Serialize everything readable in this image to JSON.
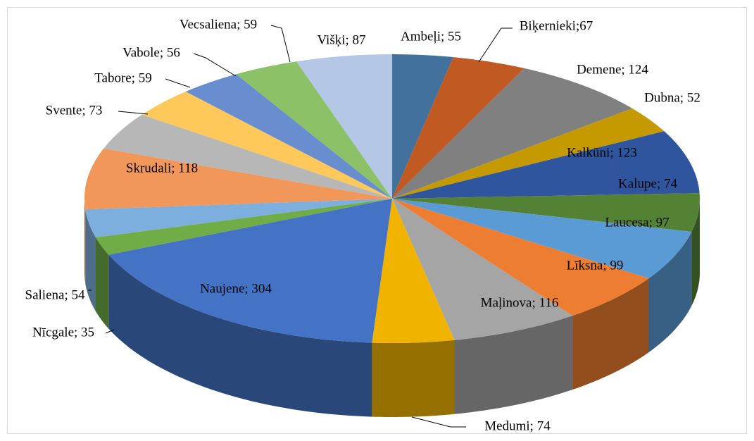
{
  "chart_data": {
    "type": "pie3d",
    "values": [
      55,
      67,
      124,
      52,
      123,
      74,
      97,
      99,
      116,
      74,
      304,
      35,
      54,
      118,
      73,
      59,
      56,
      59,
      87
    ],
    "value_labels": [
      "Ambeļi; 55",
      "Biķernieki;67",
      "Demene; 124",
      "Dubna; 52",
      "Kalkūni; 123",
      "Kalupe; 74",
      "Laucesa; 97",
      "Līksna; 99",
      "Maļinova; 116",
      "Medumi; 74",
      "Naujene; 304",
      "Nīcgale; 35",
      "Saliena; 54",
      "Skrudali; 118",
      "Svente; 73",
      "Tabore; 59",
      "Vabole; 56",
      "Vecsaliena; 59",
      "Višķi; 87"
    ],
    "colors": [
      "#41719c",
      "#c05a22",
      "#808080",
      "#c59a00",
      "#2f559f",
      "#548235",
      "#5b9bd5",
      "#ed7d31",
      "#a5a5a5",
      "#f0b400",
      "#4472c4",
      "#70ad47",
      "#7cafdd",
      "#f1975a",
      "#b7b7b7",
      "#ffc85a",
      "#698ed0",
      "#8cc168",
      "#b4c7e7"
    ]
  }
}
